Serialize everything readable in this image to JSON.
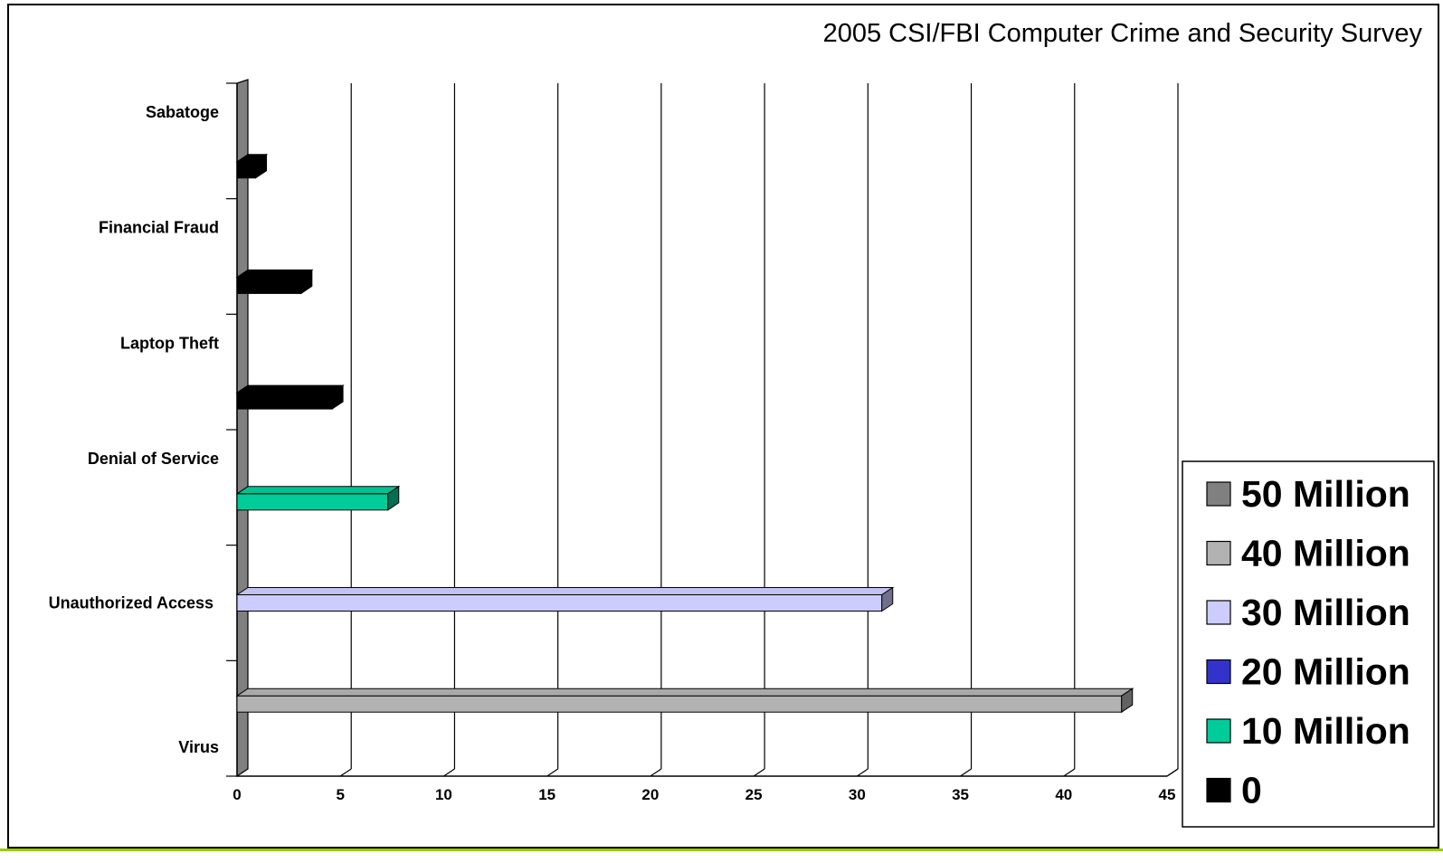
{
  "chart_data": {
    "type": "bar",
    "orientation": "horizontal",
    "title": "2005 CSI/FBI Computer Crime and Security Survey",
    "xlabel": "",
    "ylabel": "",
    "xlim": [
      0,
      45
    ],
    "x_ticks": [
      "0",
      "5",
      "10",
      "15",
      "20",
      "25",
      "30",
      "35",
      "40",
      "45"
    ],
    "grid": true,
    "categories": [
      "Sabatoge",
      "Financial Fraud",
      "Laptop Theft",
      "Denial of Service",
      "Unauthorized Access",
      "Virus"
    ],
    "values": [
      0.9,
      3.1,
      4.6,
      7.3,
      31.2,
      42.8
    ],
    "bar_colors": [
      "#000000",
      "#000000",
      "#000000",
      "#00cc99",
      "#ccccff",
      "#b2b2b2"
    ],
    "legend": {
      "placement": "right",
      "entries": [
        {
          "label": "50 Million",
          "color": "#808080"
        },
        {
          "label": "40 Million",
          "color": "#b2b2b2"
        },
        {
          "label": "30 Million",
          "color": "#ccccff"
        },
        {
          "label": "20 Million",
          "color": "#3333cc"
        },
        {
          "label": "10 Million",
          "color": "#00cc99"
        },
        {
          "label": "0",
          "color": "#000000"
        }
      ]
    }
  }
}
